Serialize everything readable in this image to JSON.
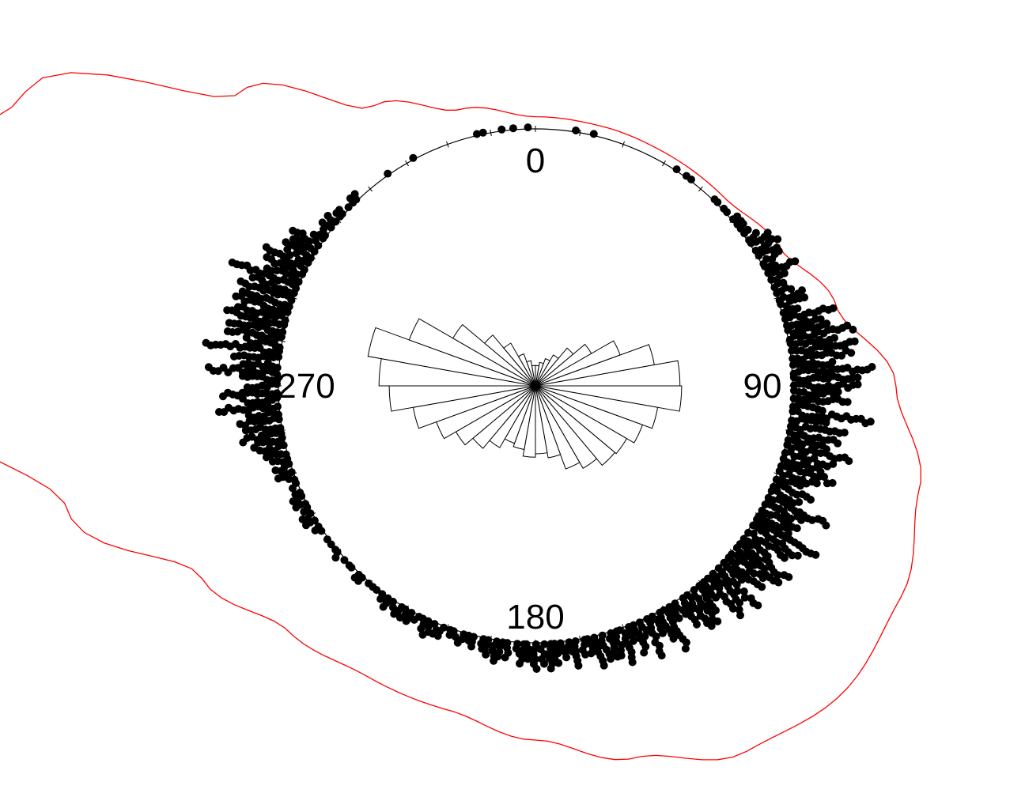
{
  "chart_data": {
    "type": "circular",
    "zero_direction": "north",
    "rotation": "clockwise",
    "units": "degrees",
    "title": "",
    "angle_labels": [
      "0",
      "90",
      "180",
      "270"
    ],
    "angle_label_values": [
      0,
      90,
      180,
      270
    ],
    "rose_diagram": {
      "bin_width_deg": 10,
      "bins_start_deg": [
        0,
        10,
        20,
        30,
        40,
        50,
        60,
        70,
        80,
        90,
        100,
        110,
        120,
        130,
        140,
        150,
        160,
        170,
        180,
        190,
        200,
        210,
        220,
        230,
        240,
        250,
        260,
        270,
        280,
        290,
        300,
        310,
        320,
        330,
        340,
        350
      ],
      "relative_lengths": [
        0.12,
        0.14,
        0.17,
        0.21,
        0.29,
        0.38,
        0.53,
        0.71,
        0.85,
        0.86,
        0.73,
        0.67,
        0.62,
        0.61,
        0.56,
        0.52,
        0.43,
        0.4,
        0.42,
        0.38,
        0.36,
        0.42,
        0.48,
        0.54,
        0.62,
        0.73,
        0.86,
        0.92,
        1.0,
        0.79,
        0.56,
        0.39,
        0.29,
        0.2,
        0.15,
        0.12
      ]
    },
    "kernel_density": {
      "color": "#ff0000",
      "angles_deg": [
        0,
        15,
        30,
        45,
        60,
        75,
        90,
        105,
        120,
        135,
        150,
        165,
        180,
        195,
        210,
        225,
        240,
        255,
        270,
        285,
        300,
        315,
        330,
        345,
        360
      ],
      "density_rel": [
        0.012,
        0.01,
        0.008,
        0.008,
        0.03,
        0.08,
        0.16,
        0.22,
        0.26,
        0.28,
        0.26,
        0.2,
        0.15,
        0.12,
        0.12,
        0.14,
        0.2,
        0.36,
        0.57,
        0.7,
        0.53,
        0.25,
        0.1,
        0.04,
        0.012
      ]
    },
    "observations_density_profile": {
      "angles_deg": [
        0,
        10,
        20,
        30,
        40,
        50,
        60,
        70,
        80,
        90,
        100,
        110,
        120,
        130,
        140,
        150,
        160,
        170,
        180,
        190,
        200,
        210,
        220,
        230,
        240,
        250,
        260,
        270,
        280,
        290,
        300,
        310,
        320,
        330,
        340,
        350
      ],
      "relative_frequency": [
        0.04,
        0.03,
        0.03,
        0.04,
        0.06,
        0.12,
        0.28,
        0.45,
        0.72,
        0.9,
        0.86,
        0.8,
        0.72,
        0.65,
        0.58,
        0.5,
        0.42,
        0.33,
        0.28,
        0.24,
        0.2,
        0.16,
        0.12,
        0.12,
        0.14,
        0.22,
        0.5,
        0.85,
        1.0,
        0.8,
        0.46,
        0.16,
        0.06,
        0.04,
        0.04,
        0.04
      ]
    }
  }
}
